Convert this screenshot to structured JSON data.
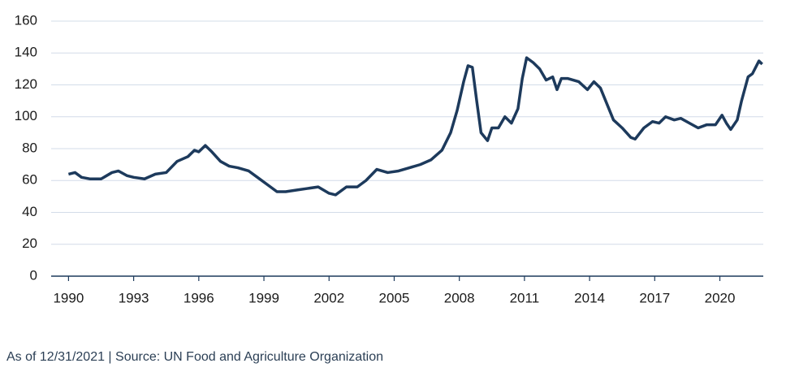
{
  "chart_data": {
    "type": "line",
    "note": "As of 12/31/2021 | Source: UN Food and Agriculture Organization",
    "x": [
      1990,
      1990.3,
      1990.6,
      1991,
      1991.5,
      1992,
      1992.3,
      1992.7,
      1993,
      1993.5,
      1994,
      1994.5,
      1995,
      1995.5,
      1995.8,
      1996.0,
      1996.3,
      1996.6,
      1997,
      1997.4,
      1997.8,
      1998.3,
      1998.7,
      1999.2,
      1999.6,
      2000,
      2000.5,
      2001,
      2001.5,
      2002,
      2002.3,
      2002.8,
      2003.3,
      2003.7,
      2004.2,
      2004.7,
      2005.2,
      2005.7,
      2006.2,
      2006.7,
      2007.2,
      2007.6,
      2007.9,
      2008.2,
      2008.4,
      2008.6,
      2008.8,
      2009.0,
      2009.3,
      2009.5,
      2009.8,
      2010.1,
      2010.4,
      2010.7,
      2010.9,
      2011.1,
      2011.4,
      2011.7,
      2012.0,
      2012.3,
      2012.5,
      2012.7,
      2013.0,
      2013.5,
      2013.9,
      2014.2,
      2014.5,
      2014.8,
      2015.1,
      2015.5,
      2015.9,
      2016.1,
      2016.5,
      2016.9,
      2017.2,
      2017.5,
      2017.9,
      2018.2,
      2018.6,
      2019.0,
      2019.4,
      2019.8,
      2020.1,
      2020.3,
      2020.5,
      2020.8,
      2021.0,
      2021.3,
      2021.5,
      2021.8,
      2021.95
    ],
    "series": [
      {
        "color": "#1d3a5c",
        "values": [
          64,
          65,
          62,
          61,
          61,
          65,
          66,
          63,
          62,
          61,
          64,
          65,
          72,
          75,
          79,
          78,
          82,
          78,
          72,
          69,
          68,
          66,
          62,
          57,
          53,
          53,
          54,
          55,
          56,
          52,
          51,
          56,
          56,
          60,
          67,
          65,
          66,
          68,
          70,
          73,
          79,
          90,
          104,
          122,
          132,
          131,
          110,
          90,
          85,
          93,
          93,
          100,
          96,
          105,
          124,
          137,
          134,
          130,
          123,
          125,
          117,
          124,
          124,
          122,
          117,
          122,
          118,
          108,
          98,
          93,
          87,
          86,
          93,
          97,
          96,
          100,
          98,
          99,
          96,
          93,
          95,
          95,
          101,
          96,
          92,
          98,
          110,
          125,
          127,
          135,
          133
        ]
      }
    ],
    "xlim": [
      1989.2,
      2022
    ],
    "ylim": [
      0,
      160
    ],
    "xticks": [
      1990,
      1993,
      1996,
      1999,
      2002,
      2005,
      2008,
      2011,
      2014,
      2017,
      2020
    ],
    "yticks": [
      0,
      20,
      40,
      60,
      80,
      100,
      120,
      140,
      160
    ],
    "grid": true
  }
}
